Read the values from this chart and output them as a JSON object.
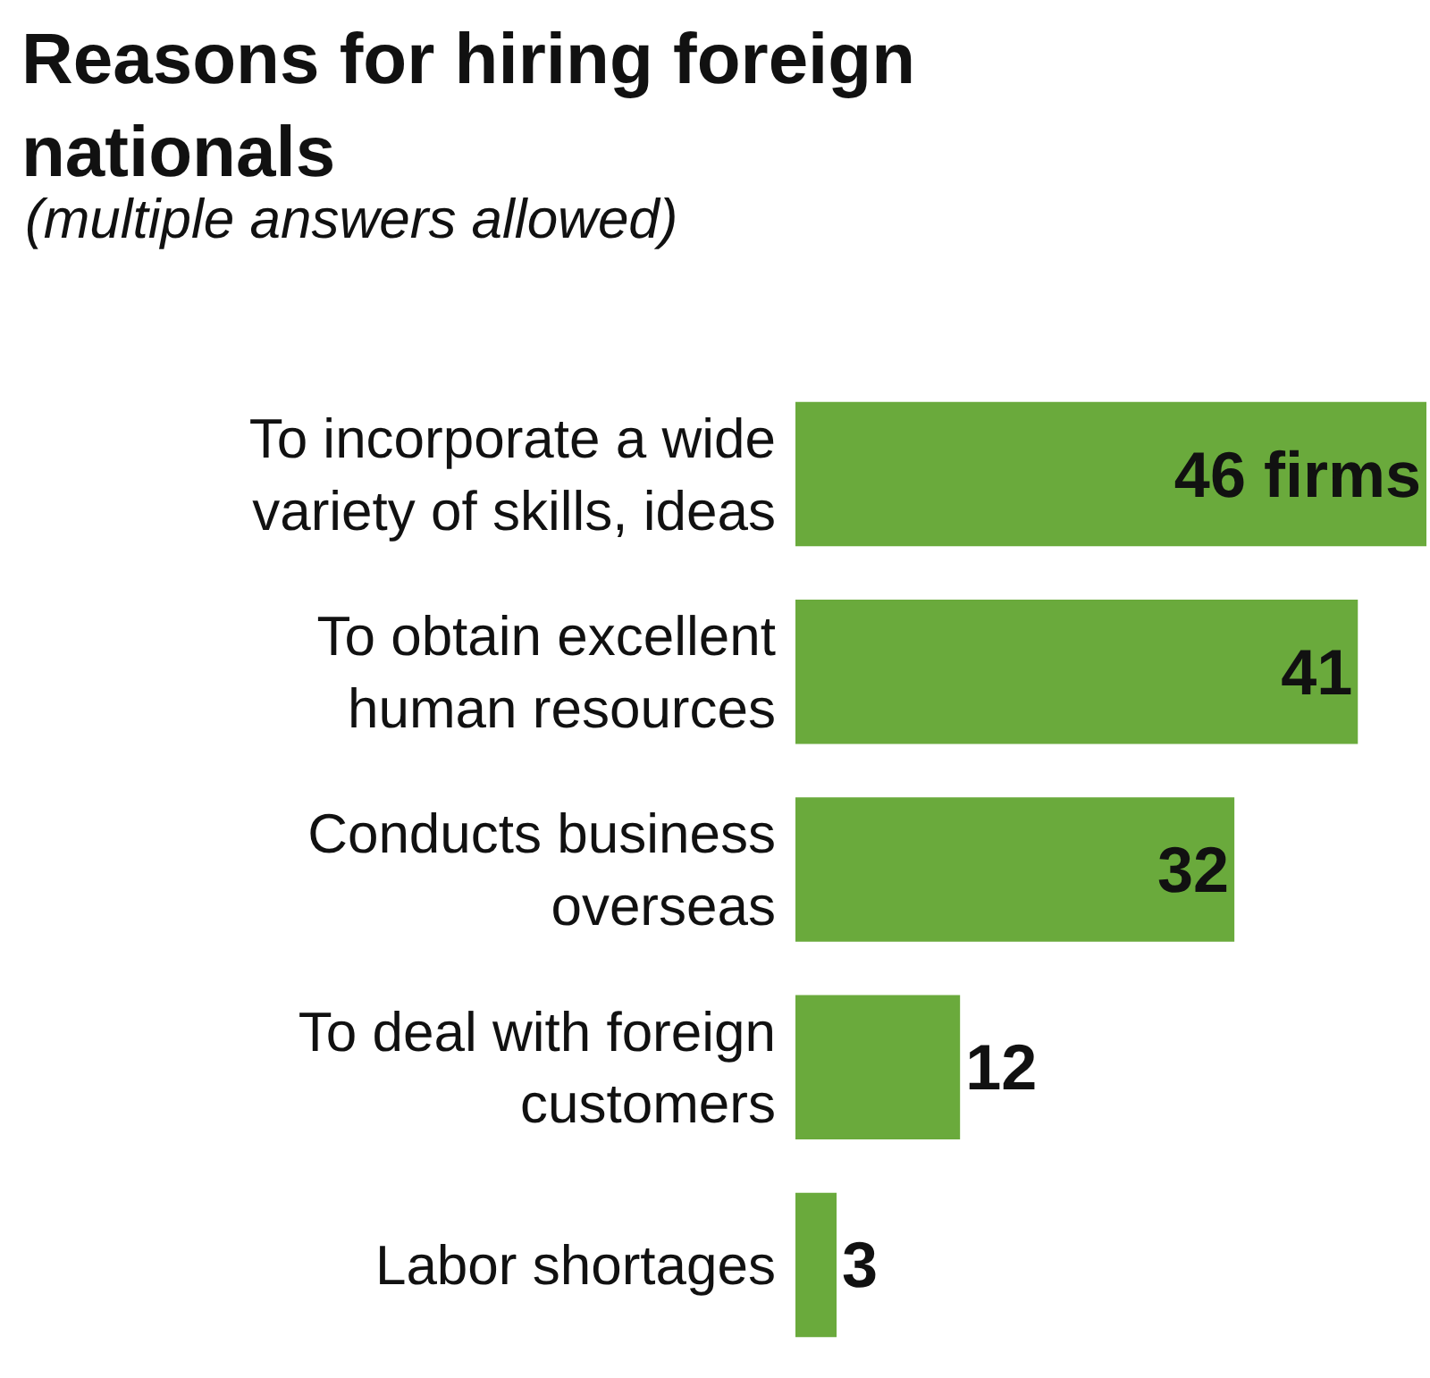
{
  "chart_data": {
    "type": "bar",
    "orientation": "horizontal",
    "title": "Reasons for hiring foreign\nnationals",
    "subtitle": "(multiple answers allowed)",
    "categories": [
      "To incorporate a wide\nvariety of skills, ideas",
      "To obtain excellent\nhuman resources",
      "Conducts business\noverseas",
      "To deal with foreign\ncustomers",
      "Labor shortages"
    ],
    "values": [
      46,
      41,
      32,
      12,
      3
    ],
    "value_labels": [
      "46 firms",
      "41",
      "32",
      "12",
      "3"
    ],
    "color": "#6aaa3c",
    "xlim": [
      0,
      46
    ]
  }
}
